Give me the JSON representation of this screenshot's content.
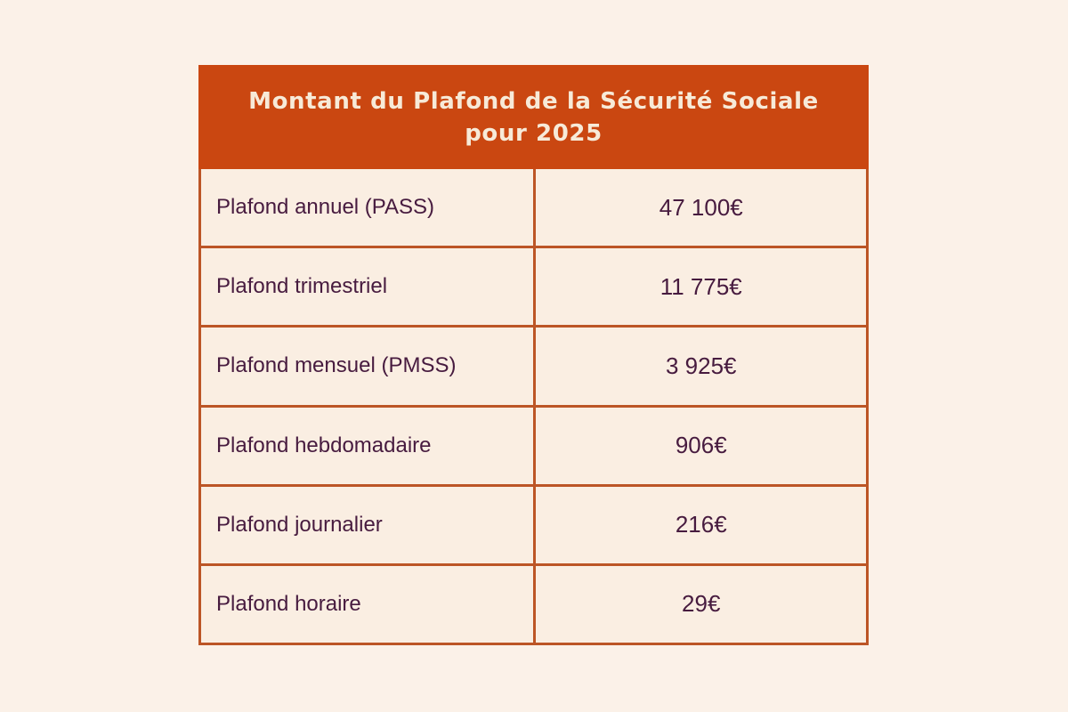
{
  "colors": {
    "page_background": "#fbf1e8",
    "header_background": "#ca4711",
    "header_text": "#f7ead8",
    "border": "#bc5526",
    "cell_background": "#faeee2",
    "cell_text": "#471b3f"
  },
  "header": {
    "title_line1": "Montant du Plafond de la Sécurité Sociale",
    "title_line2": "pour 2025"
  },
  "table": {
    "rows": [
      {
        "label": "Plafond annuel (PASS)",
        "value": "47 100€"
      },
      {
        "label": "Plafond trimestriel",
        "value": "11 775€"
      },
      {
        "label": "Plafond mensuel (PMSS)",
        "value": "3 925€"
      },
      {
        "label": "Plafond hebdomadaire",
        "value": "906€"
      },
      {
        "label": "Plafond journalier",
        "value": "216€"
      },
      {
        "label": "Plafond horaire",
        "value": "29€"
      }
    ]
  },
  "chart_data": {
    "type": "table",
    "title": "Montant du Plafond de la Sécurité Sociale pour 2025",
    "rows": [
      {
        "label": "Plafond annuel (PASS)",
        "value_eur": 47100
      },
      {
        "label": "Plafond trimestriel",
        "value_eur": 11775
      },
      {
        "label": "Plafond mensuel (PMSS)",
        "value_eur": 3925
      },
      {
        "label": "Plafond hebdomadaire",
        "value_eur": 906
      },
      {
        "label": "Plafond journalier",
        "value_eur": 216
      },
      {
        "label": "Plafond horaire",
        "value_eur": 29
      }
    ]
  }
}
